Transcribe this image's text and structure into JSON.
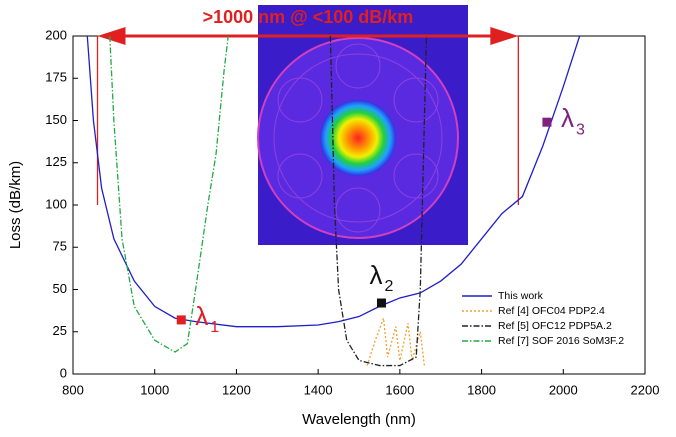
{
  "chart_data": {
    "type": "line",
    "xlabel": "Wavelength (nm)",
    "ylabel": "Loss (dB/km)",
    "xlim": [
      800,
      2200
    ],
    "xticks": [
      800,
      1000,
      1200,
      1400,
      1600,
      1800,
      2000,
      2200
    ],
    "ylim": [
      0,
      200
    ],
    "yticks": [
      0,
      25,
      50,
      75,
      100,
      125,
      150,
      175,
      200
    ],
    "grid": false,
    "legend": "lower right",
    "series": [
      {
        "name": "This work",
        "color": "#1f1fc8",
        "style": "solid",
        "x": [
          835,
          850,
          870,
          900,
          950,
          1000,
          1050,
          1100,
          1200,
          1300,
          1400,
          1450,
          1500,
          1550,
          1600,
          1650,
          1700,
          1750,
          1800,
          1850,
          1900,
          1950,
          2000,
          2040
        ],
        "values": [
          200,
          150,
          110,
          80,
          55,
          40,
          33,
          31,
          28,
          28,
          29,
          31,
          34,
          40,
          45,
          48,
          55,
          65,
          80,
          95,
          105,
          135,
          170,
          200
        ]
      },
      {
        "name": "Ref [4] OFC04 PDP2.4",
        "color": "#f0a030",
        "style": "dot",
        "x": [
          1520,
          1540,
          1560,
          1570,
          1590,
          1600,
          1620,
          1630,
          1650,
          1660
        ],
        "values": [
          5,
          20,
          33,
          10,
          28,
          8,
          30,
          8,
          25,
          5
        ]
      },
      {
        "name": "Ref [5] OFC12 PDP5A.2",
        "color": "#222222",
        "style": "dashdot",
        "x": [
          1430,
          1440,
          1450,
          1470,
          1500,
          1550,
          1600,
          1640,
          1650,
          1660,
          1665
        ],
        "values": [
          200,
          100,
          50,
          20,
          8,
          5,
          5,
          10,
          50,
          150,
          200
        ]
      },
      {
        "name": "Ref [7] SOF 2016 SoM3F.2",
        "color": "#22aa44",
        "style": "dashdot",
        "x": [
          890,
          900,
          920,
          950,
          1000,
          1050,
          1080,
          1100,
          1130,
          1150,
          1170,
          1180
        ],
        "values": [
          200,
          150,
          80,
          40,
          20,
          13,
          18,
          50,
          100,
          130,
          180,
          200
        ]
      }
    ],
    "markers": [
      {
        "text": "λ",
        "subscript": "1",
        "x": 1065,
        "value": 32,
        "color": "#e02020"
      },
      {
        "text": "λ",
        "subscript": "2",
        "x": 1555,
        "value": 42,
        "color": "#111111"
      },
      {
        "text": "λ",
        "subscript": "3",
        "x": 1960,
        "value": 149,
        "color": "#802080"
      }
    ],
    "range_annotation": {
      "text": ">1000 nm @ <100 dB/km",
      "color": "#e02020",
      "x": [
        860,
        1890
      ],
      "value": 100
    }
  }
}
